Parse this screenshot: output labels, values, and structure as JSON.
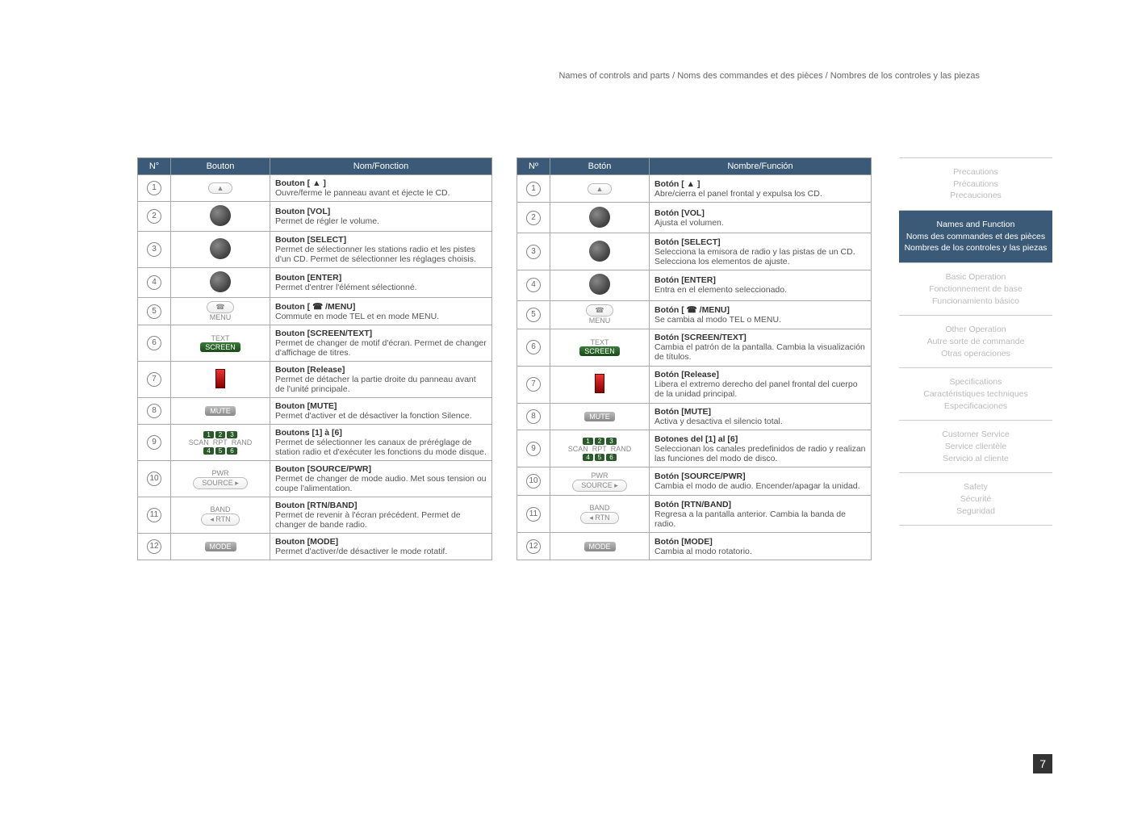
{
  "header": "Names of controls and parts / Noms des commandes et des pièces / Nombres de los controles y las piezas",
  "pagenum": "7",
  "tableFR": {
    "headers": [
      "N°",
      "Bouton",
      "Nom/Fonction"
    ],
    "rows": [
      {
        "n": "1",
        "btn": "▲",
        "title": "Bouton [ ▲ ]",
        "desc": "Ouvre/ferme le panneau avant et éjecte le CD."
      },
      {
        "n": "2",
        "btn": "knob",
        "title": "Bouton [VOL]",
        "desc": "Permet de régler le volume."
      },
      {
        "n": "3",
        "btn": "knob",
        "title": "Bouton [SELECT]",
        "desc": "Permet de sélectionner les stations radio et les pistes d'un CD. Permet de sélectionner les réglages choisis."
      },
      {
        "n": "4",
        "btn": "knob",
        "title": "Bouton [ENTER]",
        "desc": "Permet d'entrer l'élément sélectionné."
      },
      {
        "n": "5",
        "btn": "MENU",
        "title": "Bouton [ ☎ /MENU]",
        "desc": "Commute en mode TEL et en mode MENU."
      },
      {
        "n": "6",
        "btn": "SCREEN",
        "pre": "TEXT",
        "title": "Bouton [SCREEN/TEXT]",
        "desc": "Permet de changer de motif d'écran. Permet de changer d'affichage de titres."
      },
      {
        "n": "7",
        "btn": "red",
        "title": "Bouton [Release]",
        "desc": "Permet de détacher la partie droite du panneau avant de l'unité principale."
      },
      {
        "n": "8",
        "btn": "MUTE",
        "title": "Bouton [MUTE]",
        "desc": "Permet d'activer et de désactiver la fonction Silence."
      },
      {
        "n": "9",
        "btn": "nums",
        "title": "Boutons [1] à [6]",
        "desc": "Permet de sélectionner les canaux de préréglage de station radio et d'exécuter les fonctions du mode disque."
      },
      {
        "n": "10",
        "btn": "SOURCE",
        "pre": "PWR",
        "title": "Bouton [SOURCE/PWR]",
        "desc": "Permet de changer de mode audio. Met sous tension ou coupe l'alimentation."
      },
      {
        "n": "11",
        "btn": "RTN",
        "pre": "BAND",
        "title": "Bouton [RTN/BAND]",
        "desc": "Permet de revenir à l'écran précédent. Permet de changer de bande radio."
      },
      {
        "n": "12",
        "btn": "MODE",
        "title": "Bouton [MODE]",
        "desc": "Permet d'activer/de désactiver le mode rotatif."
      }
    ]
  },
  "tableES": {
    "headers": [
      "Nº",
      "Botón",
      "Nombre/Función"
    ],
    "rows": [
      {
        "n": "1",
        "btn": "▲",
        "title": "Botón [ ▲ ]",
        "desc": "Abre/cierra el panel frontal y expulsa los CD."
      },
      {
        "n": "2",
        "btn": "knob",
        "title": "Botón [VOL]",
        "desc": "Ajusta el volumen."
      },
      {
        "n": "3",
        "btn": "knob",
        "title": "Botón [SELECT]",
        "desc": "Selecciona la emisora de radio y las pistas de un CD. Selecciona los elementos de ajuste."
      },
      {
        "n": "4",
        "btn": "knob",
        "title": "Botón [ENTER]",
        "desc": "Entra en el elemento seleccionado."
      },
      {
        "n": "5",
        "btn": "MENU",
        "title": "Botón [ ☎ /MENU]",
        "desc": "Se cambia al modo TEL o MENU."
      },
      {
        "n": "6",
        "btn": "SCREEN",
        "pre": "TEXT",
        "title": "Botón [SCREEN/TEXT]",
        "desc": "Cambia el patrón de la pantalla. Cambia la visualización de títulos."
      },
      {
        "n": "7",
        "btn": "red",
        "title": "Botón [Release]",
        "desc": "Libera el extremo derecho del panel frontal del cuerpo de la unidad principal."
      },
      {
        "n": "8",
        "btn": "MUTE",
        "title": "Botón [MUTE]",
        "desc": "Activa y desactiva el silencio total."
      },
      {
        "n": "9",
        "btn": "nums",
        "title": "Botones del [1] al [6]",
        "desc": "Seleccionan los canales predefinidos de radio y realizan las funciones del modo de disco."
      },
      {
        "n": "10",
        "btn": "SOURCE",
        "pre": "PWR",
        "title": "Botón [SOURCE/PWR]",
        "desc": "Cambia el modo de audio. Encender/apagar la unidad."
      },
      {
        "n": "11",
        "btn": "RTN",
        "pre": "BAND",
        "title": "Botón [RTN/BAND]",
        "desc": "Regresa a la pantalla anterior. Cambia la banda de radio."
      },
      {
        "n": "12",
        "btn": "MODE",
        "title": "Botón [MODE]",
        "desc": "Cambia al modo rotatorio."
      }
    ]
  },
  "sidebar": [
    {
      "lines": [
        "Precautions",
        "Précautions",
        "Precauciones"
      ],
      "active": false
    },
    {
      "lines": [
        "Names and Function",
        "Noms des commandes et des pièces",
        "Nombres de los controles y las piezas"
      ],
      "active": true
    },
    {
      "lines": [
        "Basic Operation",
        "Fonctionnement de base",
        "Funcionamiento básico"
      ],
      "active": false
    },
    {
      "lines": [
        "Other Operation",
        "Autre sorte de commande",
        "Otras operaciones"
      ],
      "active": false
    },
    {
      "lines": [
        "Specifications",
        "Caractéristiques techniques",
        "Especificaciones"
      ],
      "active": false
    },
    {
      "lines": [
        "Customer Service",
        "Service clientèle",
        "Servicio al cliente"
      ],
      "active": false
    },
    {
      "lines": [
        "Safety",
        "Sécurité",
        "Seguridad"
      ],
      "active": false
    }
  ]
}
